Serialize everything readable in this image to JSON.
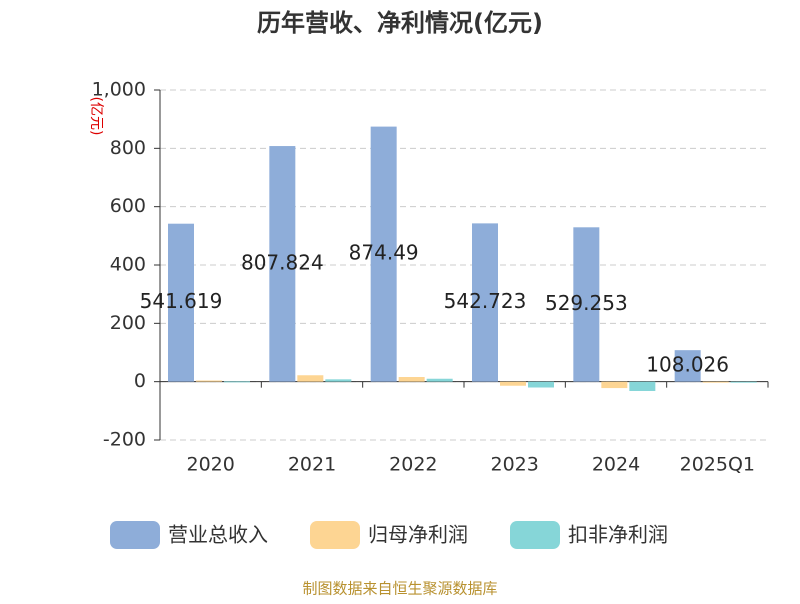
{
  "chart_data": {
    "type": "bar",
    "title": "历年营收、净利情况(亿元)",
    "y_label": "(亿元)",
    "categories": [
      "2020",
      "2021",
      "2022",
      "2023",
      "2024",
      "2025Q1"
    ],
    "series": [
      {
        "name": "营业总收入",
        "color": "#8eadd9",
        "values": [
          541.619,
          807.824,
          874.49,
          542.723,
          529.253,
          108.026
        ]
      },
      {
        "name": "归母净利润",
        "color": "#fdd593",
        "values": [
          4,
          22,
          16,
          -14,
          -22,
          -2
        ]
      },
      {
        "name": "扣非净利润",
        "color": "#86d6d8",
        "values": [
          1,
          8,
          10,
          -20,
          -32,
          -3
        ]
      }
    ],
    "label_series": 0,
    "ylim": [
      -200,
      1000
    ],
    "yticks": [
      -200,
      0,
      200,
      400,
      600,
      800,
      {
        "value": 1000,
        "label": "1,000"
      }
    ],
    "grid": true,
    "legend": "bottom",
    "source": "制图数据来自恒生聚源数据库"
  }
}
